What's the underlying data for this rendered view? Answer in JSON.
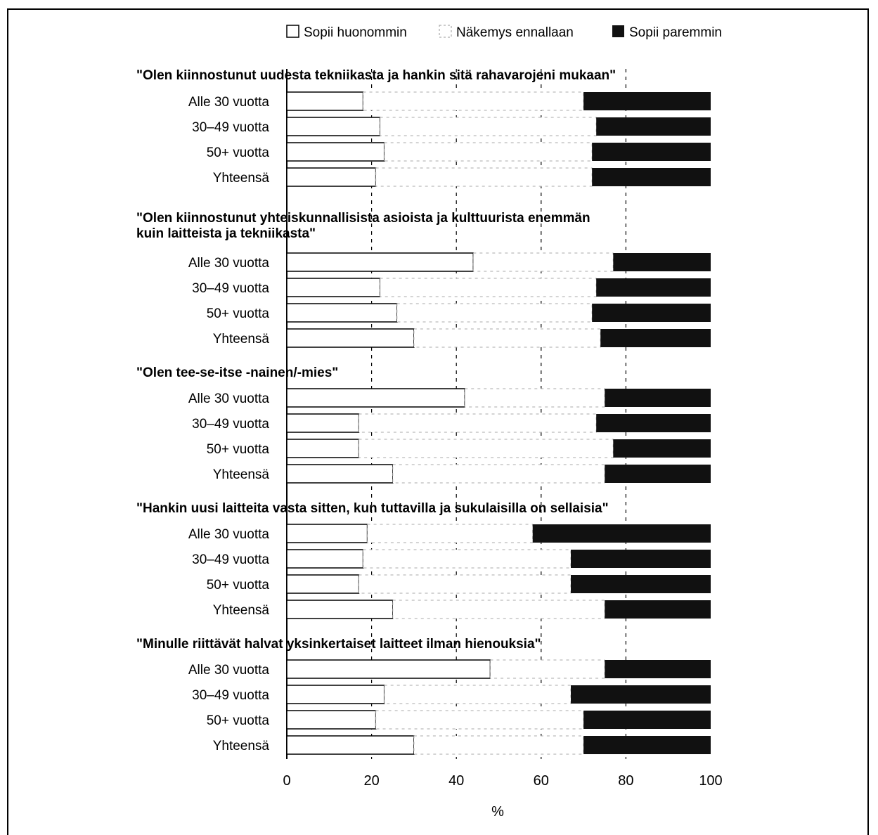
{
  "chart_data": {
    "type": "bar",
    "stacked": true,
    "orientation": "horizontal",
    "legend": {
      "position": "top-right",
      "entries": [
        {
          "key": "worse",
          "label": "Sopii huonommin",
          "color": "#ffffff"
        },
        {
          "key": "neutral",
          "label": "Näkemys ennallaan",
          "color": "#ffffff"
        },
        {
          "key": "better",
          "label": "Sopii paremmin",
          "color": "#111111"
        }
      ]
    },
    "xlabel": "%",
    "xlim": [
      0,
      100
    ],
    "xticks": [
      "0",
      "20",
      "40",
      "60",
      "80",
      "100"
    ],
    "grid": "vertical-dashed",
    "groups": [
      {
        "title_lines": [
          "\"Olen kiinnostunut uudesta tekniikasta ja hankin sitä rahavarojeni mukaan\""
        ],
        "rows": [
          {
            "label": "Alle 30 vuotta",
            "worse": 18,
            "neutral": 52,
            "better": 30
          },
          {
            "label": "30–49 vuotta",
            "worse": 22,
            "neutral": 51,
            "better": 27
          },
          {
            "label": "50+ vuotta",
            "worse": 23,
            "neutral": 49,
            "better": 28
          },
          {
            "label": "Yhteensä",
            "worse": 21,
            "neutral": 51,
            "better": 28
          }
        ]
      },
      {
        "title_lines": [
          "\"Olen kiinnostunut yhteiskunnallisista asioista ja kulttuurista enemmän",
          "kuin laitteista ja tekniikasta\""
        ],
        "rows": [
          {
            "label": "Alle 30 vuotta",
            "worse": 44,
            "neutral": 33,
            "better": 23
          },
          {
            "label": "30–49 vuotta",
            "worse": 22,
            "neutral": 51,
            "better": 27
          },
          {
            "label": "50+ vuotta",
            "worse": 26,
            "neutral": 46,
            "better": 28
          },
          {
            "label": "Yhteensä",
            "worse": 30,
            "neutral": 44,
            "better": 26
          }
        ]
      },
      {
        "title_lines": [
          "\"Olen tee-se-itse  -nainen/-mies\""
        ],
        "rows": [
          {
            "label": "Alle 30 vuotta",
            "worse": 42,
            "neutral": 33,
            "better": 25
          },
          {
            "label": "30–49 vuotta",
            "worse": 17,
            "neutral": 56,
            "better": 27
          },
          {
            "label": "50+ vuotta",
            "worse": 17,
            "neutral": 60,
            "better": 23
          },
          {
            "label": "Yhteensä",
            "worse": 25,
            "neutral": 50,
            "better": 25
          }
        ]
      },
      {
        "title_lines": [
          "\"Hankin uusi laitteita vasta sitten, kun tuttavilla ja sukulaisilla on sellaisia\""
        ],
        "rows": [
          {
            "label": "Alle 30 vuotta",
            "worse": 19,
            "neutral": 39,
            "better": 42
          },
          {
            "label": "30–49 vuotta",
            "worse": 18,
            "neutral": 49,
            "better": 33
          },
          {
            "label": "50+ vuotta",
            "worse": 17,
            "neutral": 50,
            "better": 33
          },
          {
            "label": "Yhteensä",
            "worse": 25,
            "neutral": 50,
            "better": 25
          }
        ]
      },
      {
        "title_lines": [
          "\"Minulle riittävät halvat yksinkertaiset laitteet ilman hienouksia\""
        ],
        "rows": [
          {
            "label": "Alle 30 vuotta",
            "worse": 48,
            "neutral": 27,
            "better": 25
          },
          {
            "label": "30–49 vuotta",
            "worse": 23,
            "neutral": 44,
            "better": 33
          },
          {
            "label": "50+ vuotta",
            "worse": 21,
            "neutral": 49,
            "better": 30
          },
          {
            "label": "Yhteensä",
            "worse": 30,
            "neutral": 40,
            "better": 30
          }
        ]
      }
    ]
  }
}
